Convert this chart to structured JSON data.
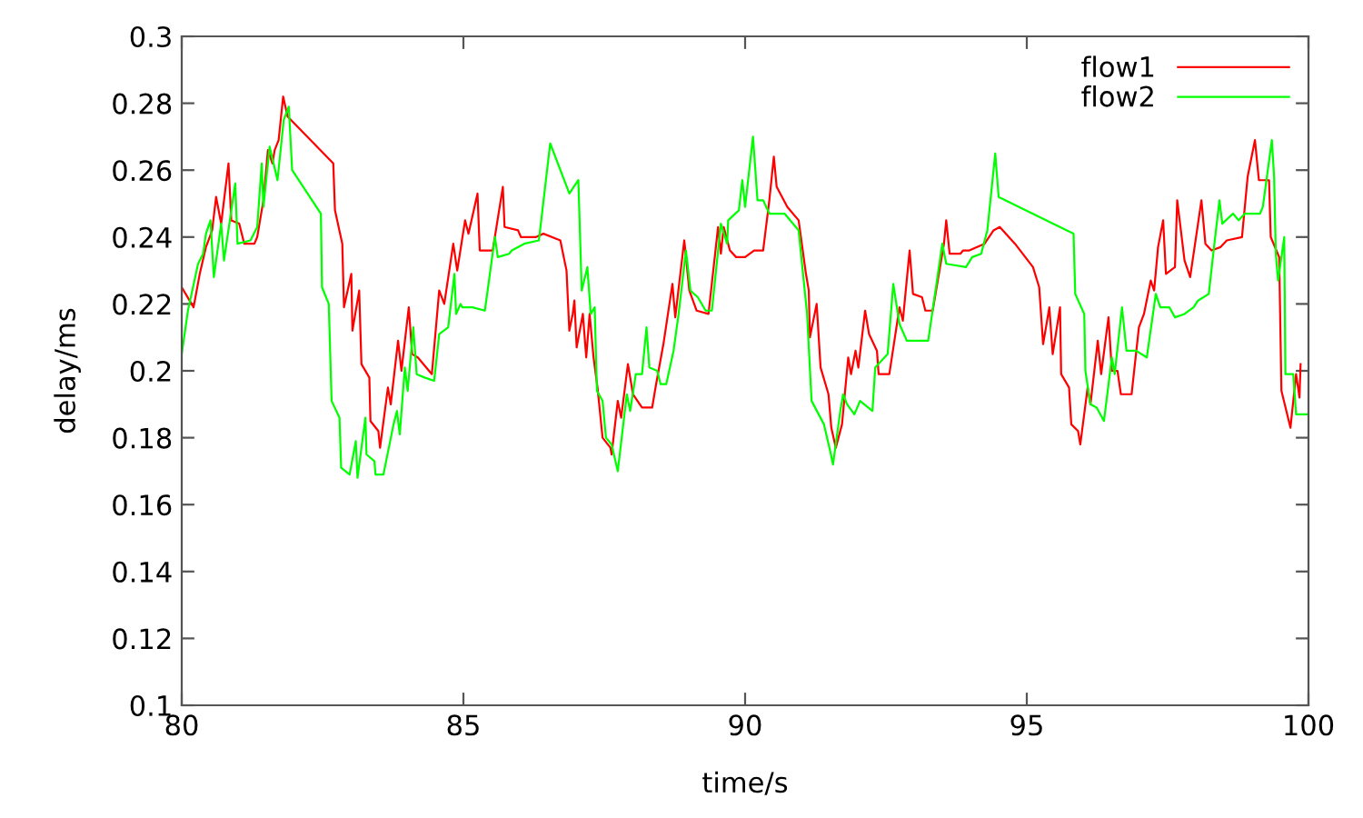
{
  "chart_data": {
    "type": "line",
    "xlabel": "time/s",
    "ylabel": "delay/ms",
    "xlim": [
      80,
      100
    ],
    "ylim": [
      0.1,
      0.3
    ],
    "xticks": [
      80,
      85,
      90,
      95,
      100
    ],
    "yticks": [
      0.1,
      0.12,
      0.14,
      0.16,
      0.18,
      0.2,
      0.22,
      0.24,
      0.26,
      0.28,
      0.3
    ],
    "grid": false,
    "legend": "top right",
    "marker": "none",
    "line_style": "solid",
    "series": [
      {
        "name": "flow1",
        "color": "#ff0000",
        "x": [
          80.0,
          80.21,
          80.32,
          80.43,
          80.54,
          80.61,
          80.7,
          80.83,
          80.88,
          81.02,
          81.11,
          81.29,
          81.34,
          81.45,
          81.53,
          81.61,
          81.65,
          81.72,
          81.8,
          81.88,
          82.69,
          82.72,
          82.85,
          82.88,
          83.01,
          83.03,
          83.15,
          83.19,
          83.33,
          83.35,
          83.49,
          83.52,
          83.66,
          83.71,
          83.84,
          83.9,
          84.03,
          84.09,
          84.19,
          84.44,
          84.57,
          84.66,
          84.82,
          84.89,
          85.03,
          85.09,
          85.25,
          85.29,
          85.52,
          85.7,
          85.73,
          85.97,
          86.02,
          86.29,
          86.42,
          86.72,
          86.83,
          86.88,
          86.94,
          86.97,
          87.01,
          87.12,
          87.18,
          87.24,
          87.31,
          87.38,
          87.47,
          87.61,
          87.63,
          87.74,
          87.8,
          87.92,
          88.01,
          88.17,
          88.35,
          88.42,
          88.55,
          88.71,
          88.76,
          88.92,
          89.01,
          89.14,
          89.35,
          89.52,
          89.57,
          89.62,
          89.73,
          89.84,
          90.0,
          90.16,
          90.32,
          90.43,
          90.51,
          90.56,
          90.75,
          90.95,
          91.08,
          91.13,
          91.15,
          91.27,
          91.34,
          91.48,
          91.53,
          91.61,
          91.72,
          91.83,
          91.88,
          91.96,
          92.01,
          92.13,
          92.2,
          92.34,
          92.37,
          92.56,
          92.74,
          92.8,
          92.92,
          92.98,
          93.14,
          93.2,
          93.33,
          93.53,
          93.57,
          93.63,
          93.82,
          93.87,
          93.98,
          94.25,
          94.41,
          94.52,
          94.79,
          95.11,
          95.22,
          95.29,
          95.4,
          95.46,
          95.59,
          95.61,
          95.75,
          95.79,
          95.91,
          95.95,
          96.08,
          96.13,
          96.26,
          96.32,
          96.45,
          96.51,
          96.61,
          96.67,
          96.86,
          96.99,
          97.08,
          97.2,
          97.26,
          97.33,
          97.42,
          97.47,
          97.63,
          97.67,
          97.8,
          97.9,
          98.1,
          98.17,
          98.28,
          98.44,
          98.55,
          98.82,
          98.92,
          99.05,
          99.12,
          99.3,
          99.33,
          99.48,
          99.52,
          99.68,
          99.78,
          99.84,
          99.86
        ],
        "values": [
          0.225,
          0.219,
          0.229,
          0.237,
          0.242,
          0.252,
          0.244,
          0.262,
          0.245,
          0.244,
          0.238,
          0.238,
          0.24,
          0.251,
          0.266,
          0.262,
          0.266,
          0.269,
          0.282,
          0.276,
          0.262,
          0.248,
          0.238,
          0.219,
          0.229,
          0.212,
          0.224,
          0.202,
          0.198,
          0.185,
          0.182,
          0.177,
          0.195,
          0.19,
          0.209,
          0.2,
          0.219,
          0.205,
          0.204,
          0.199,
          0.224,
          0.22,
          0.238,
          0.23,
          0.245,
          0.241,
          0.253,
          0.236,
          0.236,
          0.255,
          0.243,
          0.242,
          0.24,
          0.24,
          0.241,
          0.239,
          0.23,
          0.212,
          0.217,
          0.221,
          0.207,
          0.217,
          0.204,
          0.217,
          0.204,
          0.195,
          0.18,
          0.177,
          0.175,
          0.191,
          0.186,
          0.202,
          0.193,
          0.189,
          0.189,
          0.196,
          0.208,
          0.226,
          0.216,
          0.239,
          0.224,
          0.218,
          0.217,
          0.243,
          0.235,
          0.243,
          0.236,
          0.234,
          0.234,
          0.236,
          0.236,
          0.251,
          0.264,
          0.255,
          0.249,
          0.245,
          0.229,
          0.224,
          0.21,
          0.22,
          0.201,
          0.193,
          0.183,
          0.177,
          0.184,
          0.204,
          0.199,
          0.206,
          0.201,
          0.218,
          0.211,
          0.206,
          0.199,
          0.199,
          0.219,
          0.215,
          0.236,
          0.223,
          0.222,
          0.218,
          0.218,
          0.238,
          0.245,
          0.235,
          0.235,
          0.236,
          0.236,
          0.238,
          0.242,
          0.243,
          0.238,
          0.231,
          0.225,
          0.208,
          0.219,
          0.205,
          0.219,
          0.199,
          0.195,
          0.184,
          0.182,
          0.178,
          0.195,
          0.19,
          0.209,
          0.199,
          0.216,
          0.2,
          0.2,
          0.193,
          0.193,
          0.213,
          0.217,
          0.227,
          0.224,
          0.237,
          0.245,
          0.229,
          0.231,
          0.251,
          0.233,
          0.228,
          0.251,
          0.238,
          0.236,
          0.237,
          0.239,
          0.24,
          0.258,
          0.269,
          0.257,
          0.257,
          0.24,
          0.234,
          0.194,
          0.183,
          0.199,
          0.192,
          0.202
        ]
      },
      {
        "name": "flow2",
        "color": "#00ff00",
        "x": [
          80.0,
          80.11,
          80.29,
          80.38,
          80.43,
          80.51,
          80.57,
          80.7,
          80.75,
          80.95,
          80.99,
          81.22,
          81.34,
          81.42,
          81.45,
          81.56,
          81.7,
          81.81,
          81.9,
          81.96,
          82.47,
          82.49,
          82.61,
          82.66,
          82.8,
          82.83,
          82.98,
          83.09,
          83.12,
          83.26,
          83.28,
          83.42,
          83.44,
          83.58,
          83.76,
          83.82,
          83.87,
          83.96,
          84.01,
          84.11,
          84.17,
          84.31,
          84.48,
          84.57,
          84.73,
          84.84,
          84.87,
          84.95,
          84.98,
          85.16,
          85.38,
          85.43,
          85.51,
          85.56,
          85.61,
          85.81,
          85.86,
          86.08,
          86.34,
          86.54,
          86.88,
          87.04,
          87.1,
          87.2,
          87.26,
          87.33,
          87.37,
          87.47,
          87.53,
          87.63,
          87.74,
          87.9,
          87.96,
          88.06,
          88.17,
          88.25,
          88.3,
          88.44,
          88.5,
          88.6,
          88.73,
          88.82,
          88.95,
          89.03,
          89.16,
          89.3,
          89.41,
          89.57,
          89.68,
          89.7,
          89.89,
          89.95,
          90.0,
          90.14,
          90.22,
          90.32,
          90.43,
          90.7,
          90.95,
          91.1,
          91.18,
          91.4,
          91.51,
          91.56,
          91.69,
          91.74,
          91.81,
          91.94,
          92.04,
          92.26,
          92.31,
          92.53,
          92.63,
          92.74,
          92.87,
          93.25,
          93.5,
          93.57,
          93.92,
          94.03,
          94.19,
          94.3,
          94.44,
          94.5,
          95.83,
          95.86,
          96.02,
          96.04,
          96.13,
          96.24,
          96.37,
          96.51,
          96.56,
          96.69,
          96.77,
          96.94,
          97.13,
          97.29,
          97.37,
          97.53,
          97.63,
          97.8,
          97.96,
          98.04,
          98.23,
          98.33,
          98.42,
          98.47,
          98.66,
          98.76,
          98.87,
          99.14,
          99.19,
          99.35,
          99.39,
          99.42,
          99.46,
          99.57,
          99.59,
          99.73,
          99.78,
          99.98
        ],
        "values": [
          0.205,
          0.218,
          0.232,
          0.235,
          0.241,
          0.245,
          0.228,
          0.244,
          0.233,
          0.256,
          0.238,
          0.239,
          0.243,
          0.262,
          0.249,
          0.267,
          0.257,
          0.275,
          0.279,
          0.26,
          0.247,
          0.225,
          0.22,
          0.191,
          0.186,
          0.171,
          0.169,
          0.179,
          0.168,
          0.186,
          0.175,
          0.173,
          0.169,
          0.169,
          0.184,
          0.188,
          0.181,
          0.201,
          0.194,
          0.213,
          0.199,
          0.198,
          0.197,
          0.211,
          0.213,
          0.229,
          0.217,
          0.22,
          0.219,
          0.219,
          0.218,
          0.224,
          0.234,
          0.24,
          0.234,
          0.235,
          0.236,
          0.238,
          0.239,
          0.268,
          0.253,
          0.257,
          0.224,
          0.231,
          0.217,
          0.219,
          0.194,
          0.191,
          0.18,
          0.178,
          0.17,
          0.193,
          0.188,
          0.199,
          0.199,
          0.213,
          0.201,
          0.2,
          0.196,
          0.196,
          0.206,
          0.217,
          0.236,
          0.224,
          0.222,
          0.218,
          0.218,
          0.244,
          0.238,
          0.245,
          0.248,
          0.257,
          0.249,
          0.27,
          0.251,
          0.251,
          0.247,
          0.247,
          0.242,
          0.217,
          0.191,
          0.184,
          0.176,
          0.172,
          0.188,
          0.193,
          0.19,
          0.187,
          0.191,
          0.188,
          0.201,
          0.205,
          0.226,
          0.214,
          0.209,
          0.209,
          0.238,
          0.232,
          0.231,
          0.234,
          0.235,
          0.242,
          0.265,
          0.252,
          0.241,
          0.223,
          0.217,
          0.2,
          0.19,
          0.189,
          0.185,
          0.204,
          0.199,
          0.219,
          0.206,
          0.206,
          0.204,
          0.223,
          0.219,
          0.219,
          0.216,
          0.217,
          0.219,
          0.221,
          0.223,
          0.238,
          0.251,
          0.244,
          0.247,
          0.245,
          0.247,
          0.247,
          0.249,
          0.269,
          0.258,
          0.235,
          0.227,
          0.24,
          0.199,
          0.199,
          0.187,
          0.187
        ]
      }
    ]
  }
}
